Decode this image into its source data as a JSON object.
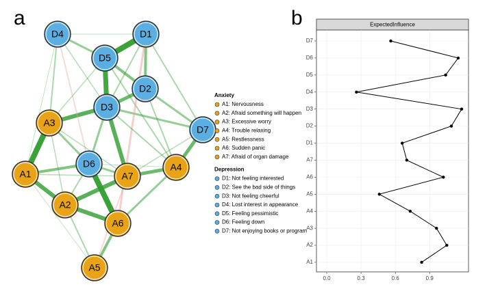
{
  "chart_data": [
    {
      "type": "network",
      "panel_label": "a",
      "groups": [
        {
          "name": "Anxiety",
          "color": "#e8a317",
          "nodes": [
            "A1",
            "A2",
            "A3",
            "A4",
            "A5",
            "A6",
            "A7"
          ],
          "items": [
            "A1: Nervousness",
            "A2: Afraid something will happen",
            "A3: Excessive worry",
            "A4: Trouble relaxing",
            "A5: Restlessness",
            "A6: Sudden panic",
            "A7: Afraid of organ damage"
          ]
        },
        {
          "name": "Depression",
          "color": "#5aaee2",
          "nodes": [
            "D1",
            "D2",
            "D3",
            "D4",
            "D5",
            "D6",
            "D7"
          ],
          "items": [
            "D1: Not feeling interested",
            "D2: See the bad side of things",
            "D3: Not feeling cheerful",
            "D4: Lost interest in appearance",
            "D5: Feeling pessimistic",
            "D6: Feeling down",
            "D7: Not enjoying books or program"
          ]
        }
      ]
    },
    {
      "type": "dotline",
      "panel_label": "b",
      "strip_title": "ExpectedInfluence",
      "categories": [
        "A1",
        "A2",
        "A3",
        "A4",
        "A5",
        "A6",
        "A7",
        "D1",
        "D2",
        "D3",
        "D4",
        "D5",
        "D6",
        "D7"
      ],
      "values": [
        0.83,
        1.05,
        0.96,
        0.73,
        0.46,
        1.02,
        0.7,
        0.66,
        1.09,
        1.18,
        0.26,
        1.04,
        1.15,
        0.56
      ],
      "color": "#000000",
      "xlim": [
        -0.09,
        1.24
      ],
      "xticks": [
        {
          "value": 0,
          "label": "0.0"
        },
        0.3,
        0.6,
        0.9
      ]
    }
  ]
}
